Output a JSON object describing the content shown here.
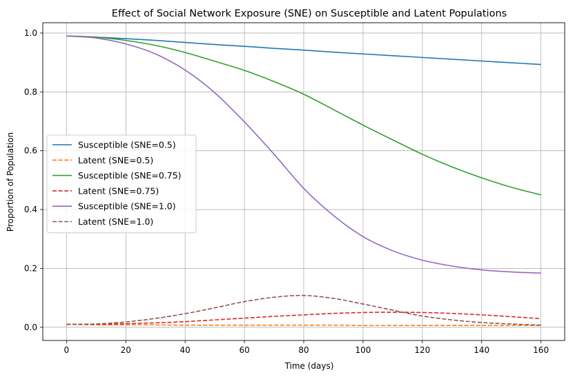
{
  "chart_data": {
    "type": "line",
    "title": "Effect of Social Network Exposure (SNE) on Susceptible and Latent Populations",
    "xlabel": "Time (days)",
    "ylabel": "Proportion of Population",
    "xlim": [
      -8,
      168
    ],
    "ylim": [
      -0.045,
      1.035
    ],
    "xticks": [
      0,
      20,
      40,
      60,
      80,
      100,
      120,
      140,
      160
    ],
    "yticks": [
      0.0,
      0.2,
      0.4,
      0.6,
      0.8,
      1.0
    ],
    "xtick_labels": [
      "0",
      "20",
      "40",
      "60",
      "80",
      "100",
      "120",
      "140",
      "160"
    ],
    "ytick_labels": [
      "0.0",
      "0.2",
      "0.4",
      "0.6",
      "0.8",
      "1.0"
    ],
    "grid": true,
    "legend_position": "center-left",
    "x": [
      0,
      10,
      20,
      30,
      40,
      50,
      60,
      70,
      80,
      90,
      100,
      110,
      120,
      130,
      140,
      150,
      160
    ],
    "series": [
      {
        "name": "Susceptible (SNE=0.5)",
        "color": "#1f77b4",
        "dash": "solid",
        "values": [
          0.99,
          0.986,
          0.981,
          0.975,
          0.968,
          0.961,
          0.955,
          0.948,
          0.942,
          0.935,
          0.929,
          0.923,
          0.917,
          0.911,
          0.905,
          0.899,
          0.893
        ]
      },
      {
        "name": "Latent (SNE=0.5)",
        "color": "#ff7f0e",
        "dash": "dashed",
        "values": [
          0.01,
          0.008,
          0.008,
          0.008,
          0.007,
          0.007,
          0.007,
          0.007,
          0.007,
          0.007,
          0.006,
          0.006,
          0.006,
          0.006,
          0.006,
          0.006,
          0.006
        ]
      },
      {
        "name": "Susceptible (SNE=0.75)",
        "color": "#2ca02c",
        "dash": "solid",
        "values": [
          0.99,
          0.986,
          0.975,
          0.958,
          0.934,
          0.904,
          0.873,
          0.835,
          0.792,
          0.74,
          0.687,
          0.637,
          0.588,
          0.545,
          0.508,
          0.476,
          0.45
        ]
      },
      {
        "name": "Latent (SNE=0.75)",
        "color": "#d62728",
        "dash": "dashed",
        "values": [
          0.01,
          0.01,
          0.012,
          0.015,
          0.019,
          0.025,
          0.031,
          0.037,
          0.042,
          0.047,
          0.05,
          0.051,
          0.05,
          0.047,
          0.042,
          0.036,
          0.029
        ]
      },
      {
        "name": "Susceptible (SNE=1.0)",
        "color": "#9467bd",
        "dash": "solid",
        "values": [
          0.99,
          0.983,
          0.963,
          0.929,
          0.874,
          0.797,
          0.698,
          0.588,
          0.472,
          0.38,
          0.308,
          0.26,
          0.228,
          0.208,
          0.195,
          0.188,
          0.184
        ]
      },
      {
        "name": "Latent (SNE=1.0)",
        "color": "#8c564b",
        "dash": "dashed",
        "values": [
          0.01,
          0.011,
          0.018,
          0.03,
          0.046,
          0.066,
          0.087,
          0.102,
          0.108,
          0.098,
          0.079,
          0.058,
          0.038,
          0.025,
          0.016,
          0.011,
          0.007
        ]
      }
    ]
  }
}
